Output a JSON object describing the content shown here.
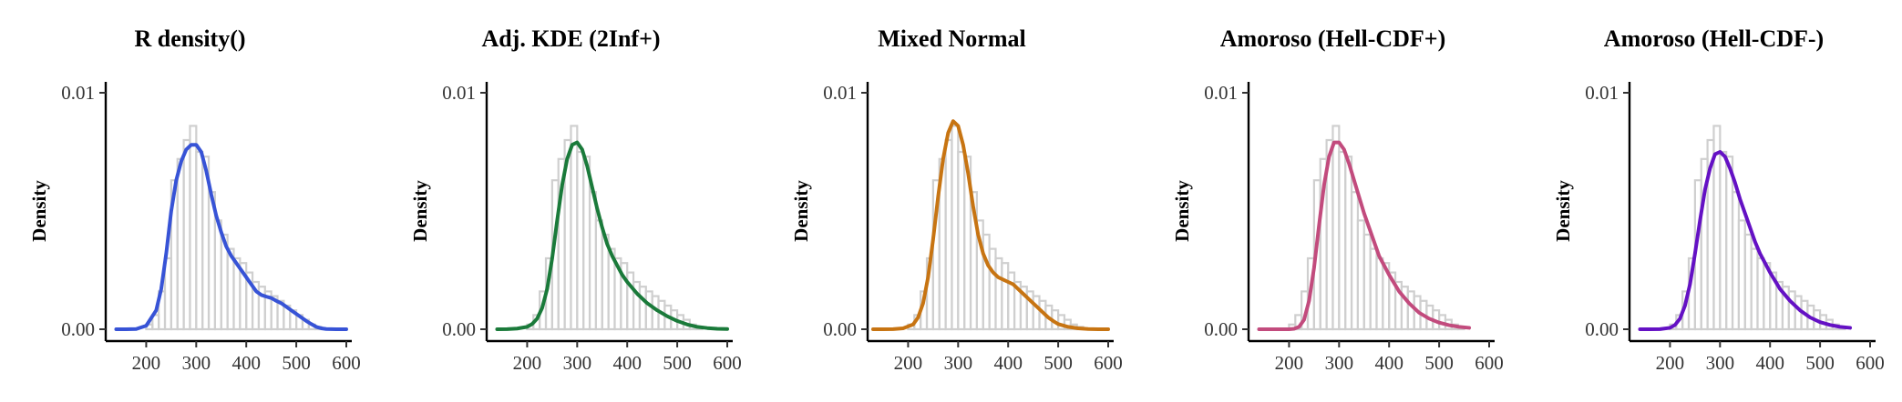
{
  "chart_data": [
    {
      "type": "histogram+density",
      "title": "R density()",
      "ylabel": "Density",
      "xlabel": "",
      "xlim": [
        130,
        600
      ],
      "ylim": [
        0,
        0.01
      ],
      "x_ticks": [
        "200",
        "300",
        "400",
        "500",
        "600"
      ],
      "y_ticks": [
        "0.00",
        "0.01"
      ],
      "histogram": {
        "bin_edges": [
          200,
          212.5,
          225,
          237.5,
          250,
          262.5,
          275,
          287.5,
          300,
          312.5,
          325,
          337.5,
          350,
          362.5,
          375,
          387.5,
          400,
          412.5,
          425,
          437.5,
          450,
          462.5,
          475,
          487.5,
          500,
          512.5,
          525,
          537.5,
          550
        ],
        "densities": [
          0.0002,
          0.0006,
          0.0016,
          0.003,
          0.0063,
          0.0072,
          0.008,
          0.0086,
          0.0075,
          0.0073,
          0.0058,
          0.0046,
          0.004,
          0.0034,
          0.003,
          0.0028,
          0.0024,
          0.002,
          0.0018,
          0.0016,
          0.0014,
          0.0012,
          0.001,
          0.0008,
          0.0006,
          0.0004,
          0.0002,
          0.0001
        ]
      },
      "curve": {
        "color": "#3753d6",
        "x": [
          140,
          160,
          180,
          200,
          220,
          230,
          240,
          250,
          260,
          270,
          280,
          290,
          300,
          310,
          320,
          330,
          340,
          350,
          360,
          370,
          380,
          390,
          400,
          410,
          420,
          430,
          440,
          450,
          460,
          470,
          480,
          490,
          500,
          510,
          520,
          530,
          540,
          550,
          560,
          580,
          600
        ],
        "y": [
          0,
          0,
          1e-05,
          0.00015,
          0.0008,
          0.0017,
          0.0032,
          0.005,
          0.0063,
          0.0071,
          0.0076,
          0.0078,
          0.0078,
          0.0075,
          0.0067,
          0.0057,
          0.0048,
          0.0041,
          0.0035,
          0.0031,
          0.0028,
          0.0025,
          0.0022,
          0.0019,
          0.0016,
          0.00145,
          0.00138,
          0.00132,
          0.0012,
          0.0011,
          0.00095,
          0.0008,
          0.00065,
          0.0005,
          0.00035,
          0.00022,
          0.0001,
          4e-05,
          1e-05,
          0,
          0
        ]
      }
    },
    {
      "type": "histogram+density",
      "title": "Adj. KDE (2Inf+)",
      "ylabel": "Density",
      "xlabel": "",
      "xlim": [
        130,
        600
      ],
      "ylim": [
        0,
        0.01
      ],
      "x_ticks": [
        "200",
        "300",
        "400",
        "500",
        "600"
      ],
      "y_ticks": [
        "0.00",
        "0.01"
      ],
      "histogram": {
        "bin_edges": [
          200,
          212.5,
          225,
          237.5,
          250,
          262.5,
          275,
          287.5,
          300,
          312.5,
          325,
          337.5,
          350,
          362.5,
          375,
          387.5,
          400,
          412.5,
          425,
          437.5,
          450,
          462.5,
          475,
          487.5,
          500,
          512.5,
          525,
          537.5,
          550
        ],
        "densities": [
          0.0002,
          0.0006,
          0.0016,
          0.003,
          0.0063,
          0.0072,
          0.008,
          0.0086,
          0.0075,
          0.0073,
          0.0058,
          0.0046,
          0.004,
          0.0034,
          0.003,
          0.0028,
          0.0024,
          0.002,
          0.0018,
          0.0016,
          0.0014,
          0.0012,
          0.001,
          0.0008,
          0.0006,
          0.0004,
          0.0002,
          0.0001
        ]
      },
      "curve": {
        "color": "#1a7a3a",
        "x": [
          140,
          160,
          180,
          200,
          210,
          220,
          230,
          240,
          250,
          260,
          270,
          280,
          290,
          300,
          310,
          320,
          330,
          340,
          350,
          360,
          370,
          380,
          390,
          400,
          420,
          440,
          460,
          480,
          500,
          520,
          540,
          560,
          580,
          600
        ],
        "y": [
          0,
          5e-06,
          3e-05,
          0.0001,
          0.00022,
          0.00045,
          0.0009,
          0.0017,
          0.003,
          0.0046,
          0.0061,
          0.0072,
          0.0078,
          0.0079,
          0.0076,
          0.0069,
          0.006,
          0.0051,
          0.0043,
          0.0036,
          0.0031,
          0.0027,
          0.0023,
          0.002,
          0.0015,
          0.0011,
          0.0008,
          0.00055,
          0.00035,
          0.0002,
          0.0001,
          5e-05,
          2e-05,
          1e-05
        ]
      }
    },
    {
      "type": "histogram+density",
      "title": "Mixed Normal",
      "ylabel": "Density",
      "xlabel": "",
      "xlim": [
        130,
        600
      ],
      "ylim": [
        0,
        0.01
      ],
      "x_ticks": [
        "200",
        "300",
        "400",
        "500",
        "600"
      ],
      "y_ticks": [
        "0.00",
        "0.01"
      ],
      "histogram": {
        "bin_edges": [
          200,
          212.5,
          225,
          237.5,
          250,
          262.5,
          275,
          287.5,
          300,
          312.5,
          325,
          337.5,
          350,
          362.5,
          375,
          387.5,
          400,
          412.5,
          425,
          437.5,
          450,
          462.5,
          475,
          487.5,
          500,
          512.5,
          525,
          537.5,
          550
        ],
        "densities": [
          0.0002,
          0.0006,
          0.0016,
          0.003,
          0.0063,
          0.0072,
          0.008,
          0.0086,
          0.0075,
          0.0073,
          0.0058,
          0.0046,
          0.004,
          0.0034,
          0.003,
          0.0028,
          0.0024,
          0.002,
          0.0018,
          0.0016,
          0.0014,
          0.0012,
          0.001,
          0.0008,
          0.0006,
          0.0004,
          0.0002,
          0.0001
        ]
      },
      "curve": {
        "color": "#c77412",
        "x": [
          130,
          150,
          170,
          190,
          210,
          220,
          230,
          240,
          250,
          260,
          270,
          280,
          290,
          300,
          310,
          320,
          330,
          340,
          350,
          360,
          370,
          380,
          390,
          400,
          410,
          420,
          430,
          440,
          450,
          460,
          470,
          480,
          490,
          500,
          520,
          540,
          560,
          580,
          600
        ],
        "y": [
          0,
          0,
          5e-06,
          4e-05,
          0.0002,
          0.0005,
          0.0011,
          0.0022,
          0.0038,
          0.0056,
          0.0072,
          0.0083,
          0.0088,
          0.0086,
          0.0078,
          0.0066,
          0.0052,
          0.004,
          0.0032,
          0.0027,
          0.0024,
          0.0022,
          0.0021,
          0.002,
          0.0019,
          0.0017,
          0.0015,
          0.0013,
          0.0011,
          0.0009,
          0.0007,
          0.0005,
          0.00035,
          0.00022,
          0.0001,
          4e-05,
          1e-05,
          0,
          0
        ]
      }
    },
    {
      "type": "histogram+density",
      "title": "Amoroso (Hell-CDF+)",
      "ylabel": "Density",
      "xlabel": "",
      "xlim": [
        130,
        600
      ],
      "ylim": [
        0,
        0.01
      ],
      "x_ticks": [
        "200",
        "300",
        "400",
        "500",
        "600"
      ],
      "y_ticks": [
        "0.00",
        "0.01"
      ],
      "histogram": {
        "bin_edges": [
          200,
          212.5,
          225,
          237.5,
          250,
          262.5,
          275,
          287.5,
          300,
          312.5,
          325,
          337.5,
          350,
          362.5,
          375,
          387.5,
          400,
          412.5,
          425,
          437.5,
          450,
          462.5,
          475,
          487.5,
          500,
          512.5,
          525,
          537.5,
          550
        ],
        "densities": [
          0.0002,
          0.0006,
          0.0016,
          0.003,
          0.0063,
          0.0072,
          0.008,
          0.0086,
          0.0075,
          0.0073,
          0.0058,
          0.0046,
          0.004,
          0.0034,
          0.003,
          0.0028,
          0.0024,
          0.002,
          0.0018,
          0.0016,
          0.0014,
          0.0012,
          0.001,
          0.0008,
          0.0006,
          0.0004,
          0.0002,
          0.0001
        ]
      },
      "curve": {
        "color": "#c24b7d",
        "x": [
          140,
          160,
          180,
          200,
          210,
          220,
          230,
          240,
          250,
          260,
          270,
          280,
          290,
          300,
          310,
          320,
          330,
          340,
          350,
          360,
          370,
          380,
          390,
          400,
          420,
          440,
          460,
          480,
          500,
          520,
          540,
          560
        ],
        "y": [
          0,
          0,
          0,
          0,
          2e-05,
          0.0001,
          0.0004,
          0.0012,
          0.0026,
          0.0044,
          0.0061,
          0.0073,
          0.0079,
          0.0079,
          0.0076,
          0.007,
          0.0063,
          0.0056,
          0.0049,
          0.0043,
          0.0037,
          0.0031,
          0.0027,
          0.0023,
          0.0016,
          0.0011,
          0.0007,
          0.00045,
          0.00028,
          0.00017,
          0.0001,
          6e-05
        ]
      }
    },
    {
      "type": "histogram+density",
      "title": "Amoroso (Hell-CDF-)",
      "ylabel": "Density",
      "xlabel": "",
      "xlim": [
        130,
        600
      ],
      "ylim": [
        0,
        0.01
      ],
      "x_ticks": [
        "200",
        "300",
        "400",
        "500",
        "600"
      ],
      "y_ticks": [
        "0.00",
        "0.01"
      ],
      "histogram": {
        "bin_edges": [
          200,
          212.5,
          225,
          237.5,
          250,
          262.5,
          275,
          287.5,
          300,
          312.5,
          325,
          337.5,
          350,
          362.5,
          375,
          387.5,
          400,
          412.5,
          425,
          437.5,
          450,
          462.5,
          475,
          487.5,
          500,
          512.5,
          525,
          537.5,
          550
        ],
        "densities": [
          0.0002,
          0.0006,
          0.0016,
          0.003,
          0.0063,
          0.0072,
          0.008,
          0.0086,
          0.0075,
          0.0073,
          0.0058,
          0.0046,
          0.004,
          0.0034,
          0.003,
          0.0028,
          0.0024,
          0.002,
          0.0018,
          0.0016,
          0.0014,
          0.0012,
          0.001,
          0.0008,
          0.0006,
          0.0004,
          0.0002,
          0.0001
        ]
      },
      "curve": {
        "color": "#6411c4",
        "x": [
          140,
          160,
          180,
          200,
          210,
          220,
          230,
          240,
          250,
          260,
          270,
          280,
          290,
          300,
          310,
          320,
          330,
          340,
          350,
          360,
          370,
          380,
          390,
          400,
          420,
          440,
          460,
          480,
          500,
          520,
          540,
          560
        ],
        "y": [
          0,
          0,
          5e-06,
          6e-05,
          0.00018,
          0.00045,
          0.001,
          0.0019,
          0.0032,
          0.0046,
          0.0059,
          0.0068,
          0.0074,
          0.0075,
          0.0073,
          0.0068,
          0.0062,
          0.0055,
          0.0049,
          0.0043,
          0.0037,
          0.0032,
          0.0028,
          0.0024,
          0.0017,
          0.0012,
          0.0008,
          0.0005,
          0.0003,
          0.00018,
          0.0001,
          6e-05
        ]
      }
    }
  ]
}
